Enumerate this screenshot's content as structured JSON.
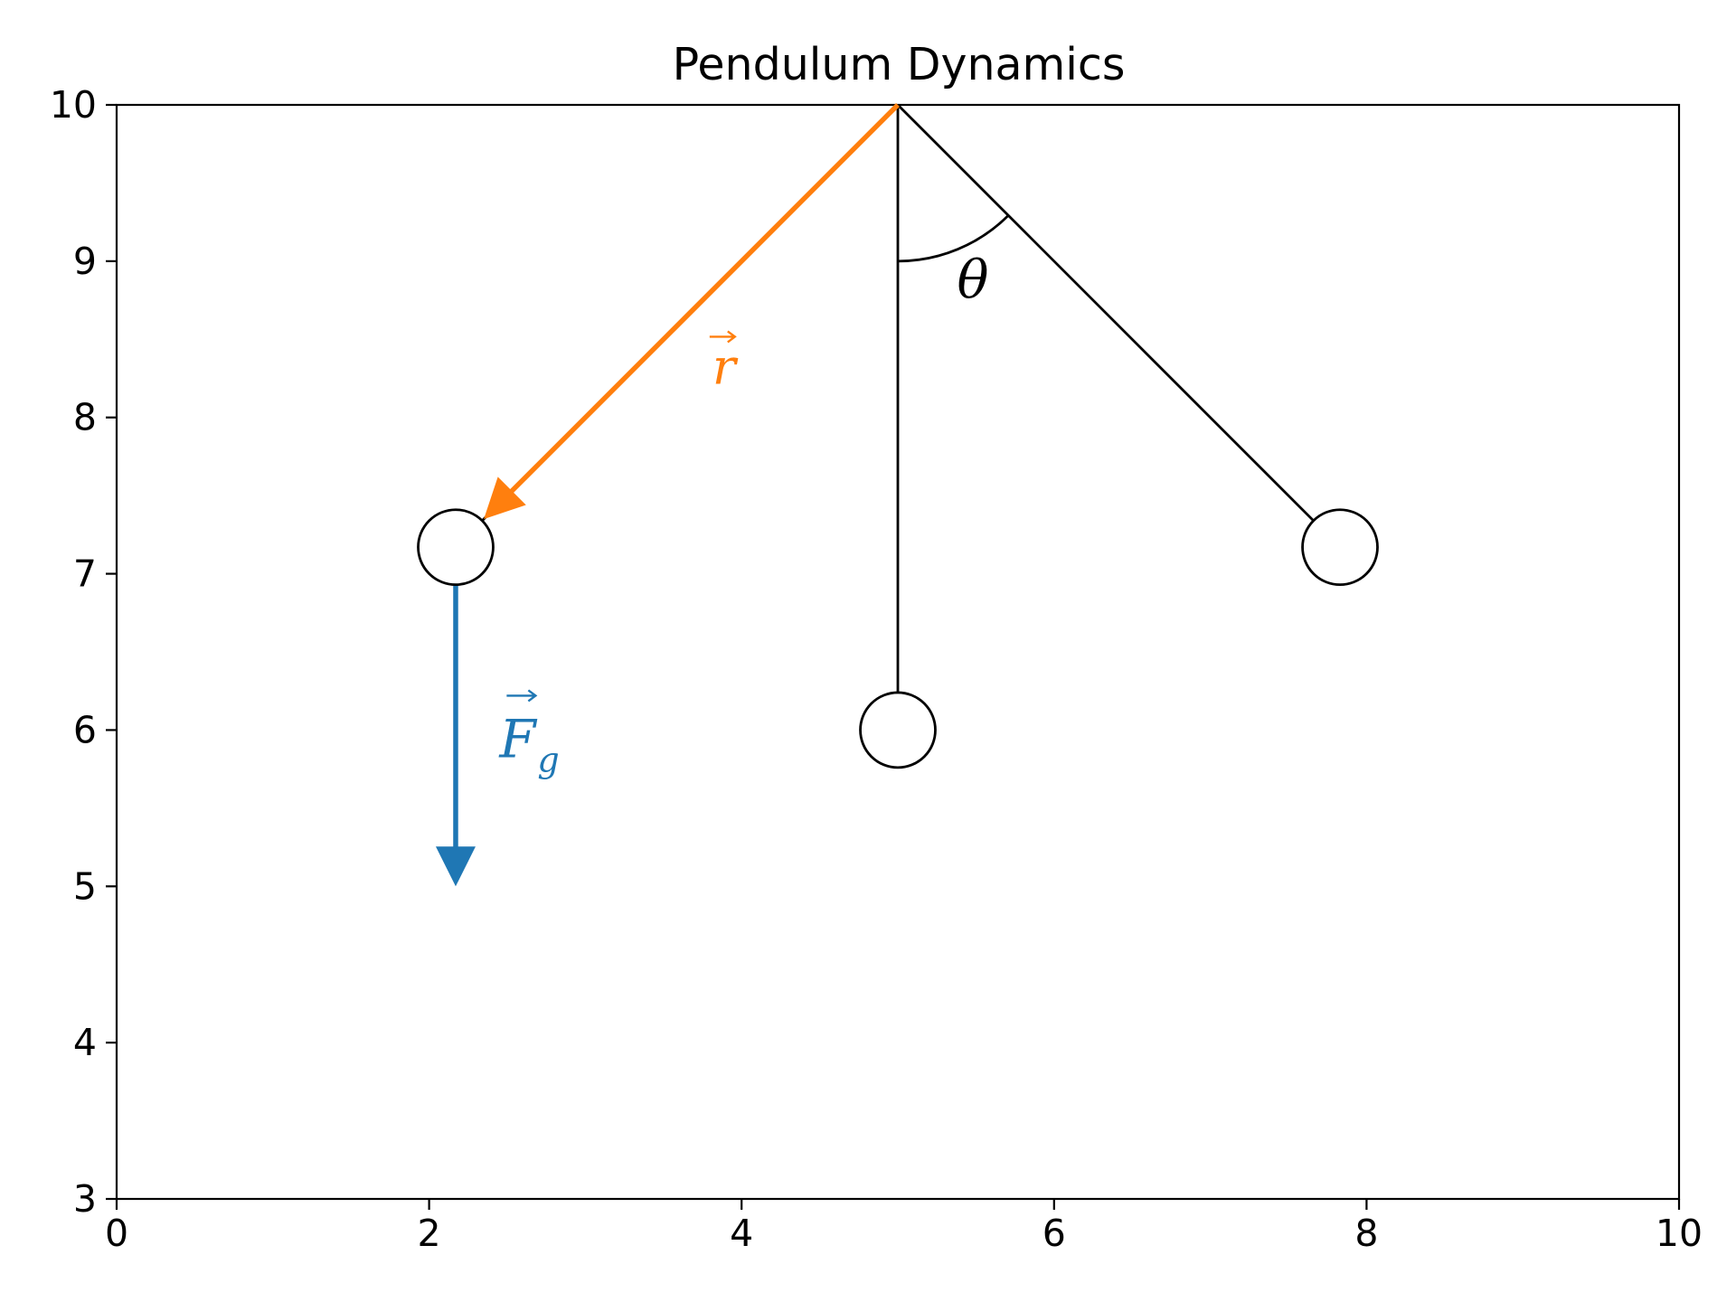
{
  "chart_data": {
    "type": "diagram",
    "title": "Pendulum Dynamics",
    "xlim": [
      0,
      10
    ],
    "ylim": [
      3,
      10
    ],
    "x_ticks": [
      "0",
      "2",
      "4",
      "6",
      "8",
      "10"
    ],
    "y_ticks": [
      "3",
      "4",
      "5",
      "6",
      "7",
      "8",
      "9",
      "10"
    ],
    "grid": false,
    "pivot": {
      "x": 5,
      "y": 10
    },
    "pendulum_length": 4,
    "bob_radius": 0.24,
    "angle_deg": 45,
    "rods": [
      {
        "name": "left",
        "to": {
          "x": 2.17,
          "y": 7.17
        }
      },
      {
        "name": "center",
        "to": {
          "x": 5,
          "y": 6
        }
      },
      {
        "name": "right",
        "to": {
          "x": 7.83,
          "y": 7.17
        }
      }
    ],
    "bobs": [
      {
        "name": "left",
        "x": 2.17,
        "y": 7.17
      },
      {
        "name": "center",
        "x": 5,
        "y": 6
      },
      {
        "name": "right",
        "x": 7.83,
        "y": 7.17
      }
    ],
    "vectors": [
      {
        "name": "r",
        "from": {
          "x": 5,
          "y": 10
        },
        "to": {
          "x": 2.35,
          "y": 7.35
        },
        "color": "#ff7f0e"
      },
      {
        "name": "Fg",
        "from": {
          "x": 2.17,
          "y": 6.93
        },
        "to": {
          "x": 2.17,
          "y": 5.0
        },
        "color": "#1f77b4"
      }
    ],
    "annotations": [
      {
        "name": "theta",
        "text": "θ",
        "x": 5.48,
        "y": 8.88,
        "color": "#000000"
      },
      {
        "name": "r-label",
        "text": "r",
        "x": 3.83,
        "y": 8.32,
        "color": "#ff7f0e"
      },
      {
        "name": "fg-label",
        "text": "F",
        "subscript": "g",
        "x": 2.45,
        "y": 6.0,
        "color": "#1f77b4"
      }
    ]
  }
}
